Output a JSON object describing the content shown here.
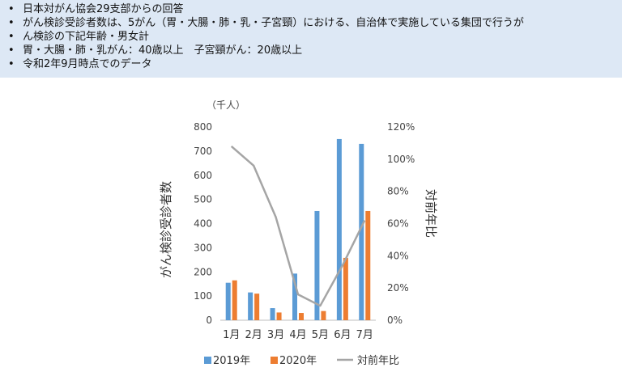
{
  "notes": [
    "日本対がん協会29支部からの回答",
    "がん検診受診者数は、5がん（胃・大腸・肺・乳・子宮頸）における、自治体で実施している集団で行うが",
    "ん検診の下記年齢・男女計",
    "胃・大腸・肺・乳がん：40歳以上　子宮頸がん：20歳以上",
    "令和2年9月時点でのデータ"
  ],
  "chart_data": {
    "type": "bar",
    "unit_label": "（千人）",
    "ylabel": "がん検診受診者数",
    "y2label": "対前年比",
    "ylim": [
      0,
      800
    ],
    "yticks": [
      "0",
      "100",
      "200",
      "300",
      "400",
      "500",
      "600",
      "700",
      "800"
    ],
    "y2lim": [
      0,
      120
    ],
    "y2ticks": [
      "0%",
      "20%",
      "40%",
      "60%",
      "80%",
      "100%",
      "120%"
    ],
    "categories": [
      "1月",
      "2月",
      "3月",
      "4月",
      "5月",
      "6月",
      "7月"
    ],
    "series": [
      {
        "name": "2019年",
        "color": "#5b9bd5",
        "values": [
          155,
          115,
          50,
          193,
          452,
          750,
          730
        ]
      },
      {
        "name": "2020年",
        "color": "#ed7d31",
        "values": [
          165,
          110,
          32,
          30,
          38,
          258,
          452
        ]
      }
    ],
    "line": {
      "name": "対前年比",
      "color": "#a5a5a5",
      "values": [
        108,
        96,
        64,
        16,
        9,
        34,
        62
      ]
    }
  }
}
